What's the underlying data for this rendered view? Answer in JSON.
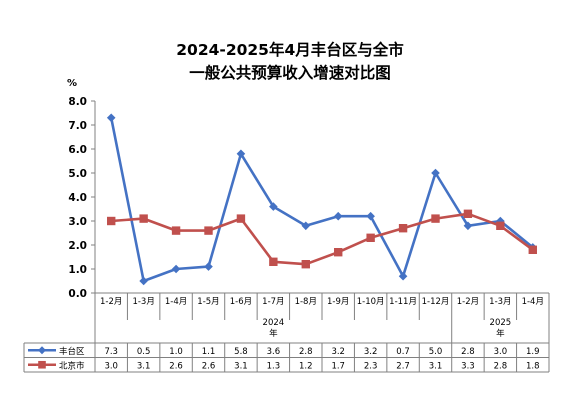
{
  "chart_data": {
    "type": "line",
    "title": [
      "2024-2025年4月丰台区与全市",
      "一般公共预算收入增速对比图"
    ],
    "unit": "%",
    "ylim": [
      0,
      8
    ],
    "yticks": [
      "0.0",
      "1.0",
      "2.0",
      "3.0",
      "4.0",
      "5.0",
      "6.0",
      "7.0",
      "8.0"
    ],
    "categories": [
      "1-2月",
      "1-3月",
      "1-4月",
      "1-5月",
      "1-6月",
      "1-7月",
      "1-8月",
      "1-9月",
      "1-10月",
      "1-11月",
      "1-12月",
      "1-2月",
      "1-3月",
      "1-4月"
    ],
    "years": [
      {
        "label": "2024",
        "suffix": "年",
        "span": [
          0,
          10
        ]
      },
      {
        "label": "2025",
        "suffix": "年",
        "span": [
          11,
          13
        ]
      }
    ],
    "grid": false,
    "legend": "data-table",
    "series": [
      {
        "name": "丰台区",
        "color": "#4472c4",
        "marker": "diamond",
        "values": [
          7.3,
          0.5,
          1.0,
          1.1,
          5.8,
          3.6,
          2.8,
          3.2,
          3.2,
          0.7,
          5.0,
          2.8,
          3.0,
          1.9
        ],
        "labels": [
          "7.3",
          "0.5",
          "1.0",
          "1.1",
          "5.8",
          "3.6",
          "2.8",
          "3.2",
          "3.2",
          "0.7",
          "5.0",
          "2.8",
          "3.0",
          "1.9"
        ]
      },
      {
        "name": "北京市",
        "color": "#c0504d",
        "marker": "square",
        "values": [
          3.0,
          3.1,
          2.6,
          2.6,
          3.1,
          1.3,
          1.2,
          1.7,
          2.3,
          2.7,
          3.1,
          3.3,
          2.8,
          1.8
        ],
        "labels": [
          "3.0",
          "3.1",
          "2.6",
          "2.6",
          "3.1",
          "1.3",
          "1.2",
          "1.7",
          "2.3",
          "2.7",
          "3.1",
          "3.3",
          "2.8",
          "1.8"
        ]
      }
    ]
  }
}
